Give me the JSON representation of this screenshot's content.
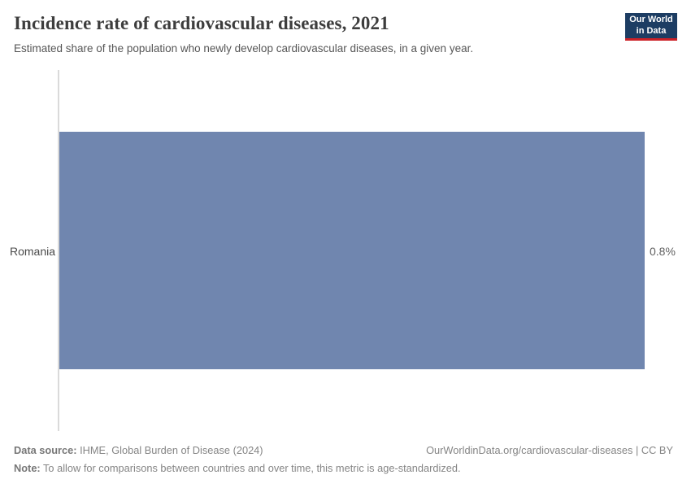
{
  "header": {
    "title": "Incidence rate of cardiovascular diseases, 2021",
    "subtitle": "Estimated share of the population who newly develop cardiovascular diseases, in a given year.",
    "logo": {
      "line1": "Our World",
      "line2": "in Data"
    }
  },
  "chart_data": {
    "type": "bar",
    "orientation": "horizontal",
    "title": "Incidence rate of cardiovascular diseases, 2021",
    "categories": [
      "Romania"
    ],
    "values": [
      0.8
    ],
    "unit": "%",
    "value_labels": [
      "0.8%"
    ],
    "xlim": [
      0,
      0.8
    ],
    "grid": false,
    "legend": "none",
    "bar_color": "#7086af"
  },
  "footer": {
    "datasource_label": "Data source:",
    "datasource_text": " IHME, Global Burden of Disease (2024)",
    "link_text": "OurWorldinData.org/cardiovascular-diseases | CC BY",
    "note_label": "Note:",
    "note_text": " To allow for comparisons between countries and over time, this metric is age-standardized."
  },
  "colors": {
    "bar": "#7086af",
    "logo_background": "#1d3d63",
    "logo_underline": "#cc2127",
    "axis_line": "#dadada",
    "title_text": "#3d3d3d"
  }
}
